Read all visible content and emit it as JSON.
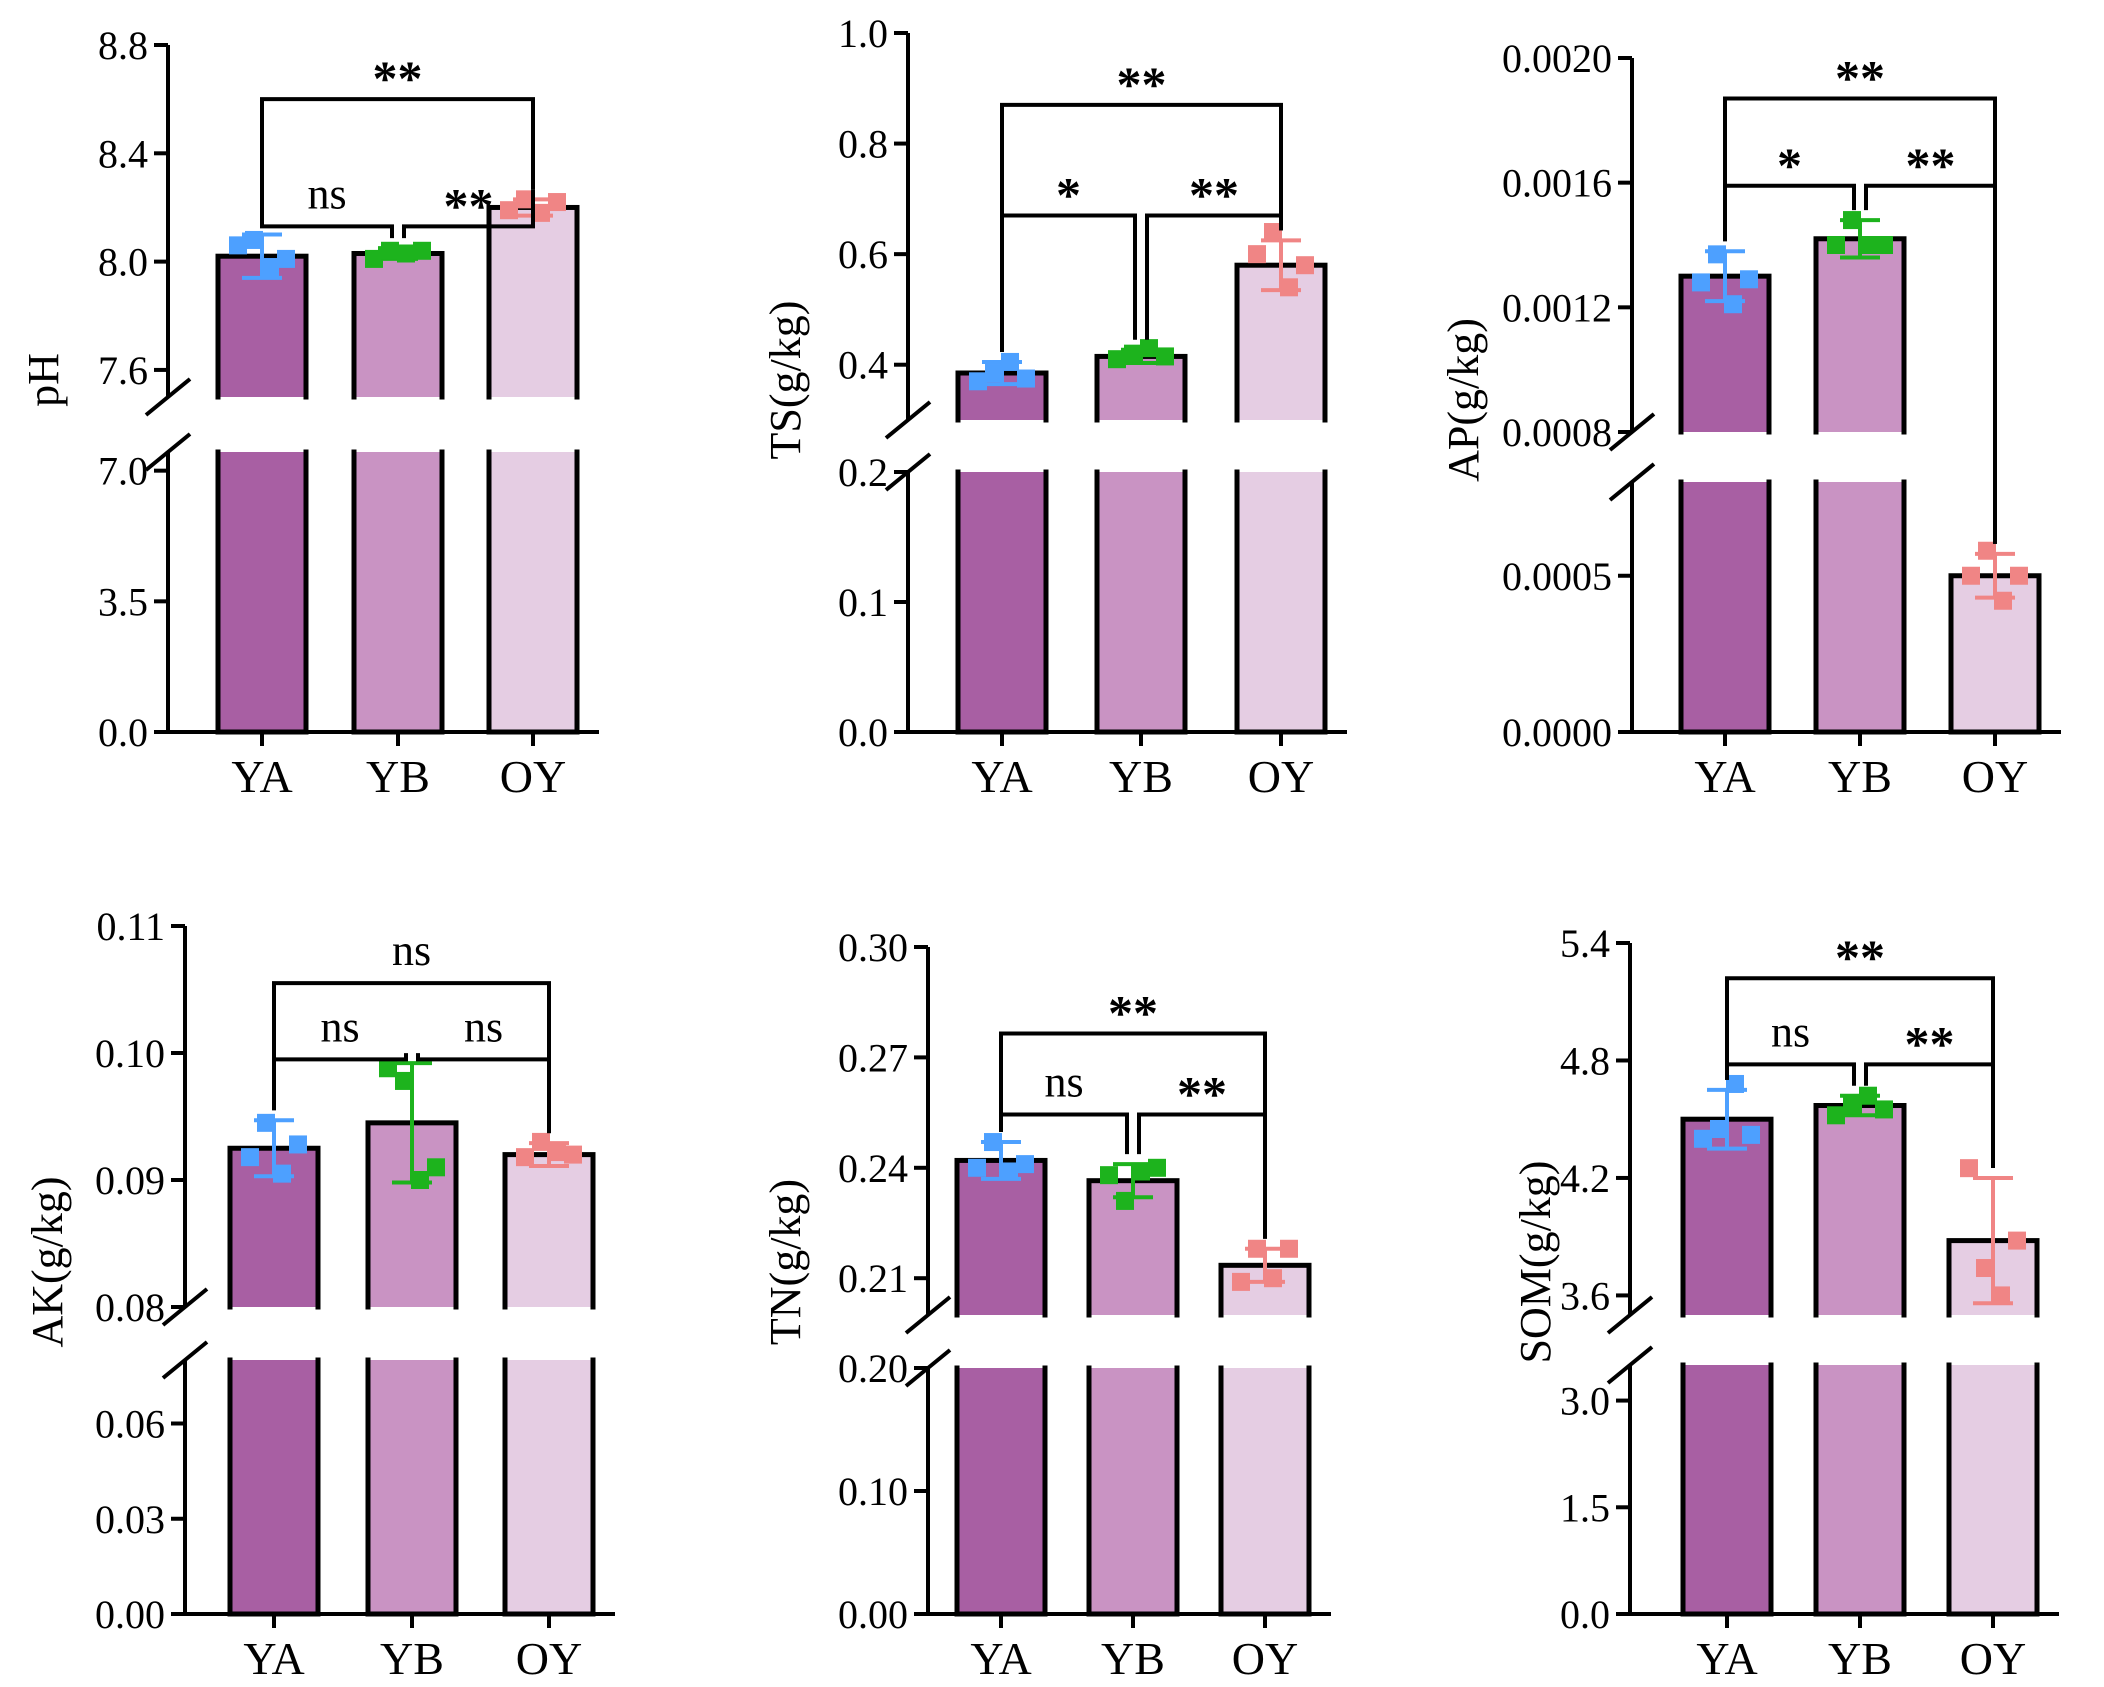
{
  "chart_data": [
    {
      "type": "bar",
      "title": "",
      "ylabel": "pH",
      "categories": [
        "YA",
        "YB",
        "OY"
      ],
      "bar_colors": [
        "#a85fa3",
        "#c993c3",
        "#e5cde3"
      ],
      "point_colors": [
        "#4da0ff",
        "#1db31d",
        "#f08585"
      ],
      "upper_range": [
        7.5,
        8.8
      ],
      "upper_ticks": [
        "7.6",
        "8.0",
        "8.4",
        "8.8"
      ],
      "lower_range": [
        0,
        7.5
      ],
      "lower_ticks": [
        "0.0",
        "3.5",
        "7.0"
      ],
      "values": [
        8.02,
        8.03,
        8.2
      ],
      "errors": [
        0.08,
        0.02,
        0.03
      ],
      "points": [
        [
          8.06,
          8.08,
          7.98,
          8.01
        ],
        [
          8.01,
          8.04,
          8.03,
          8.04
        ],
        [
          8.19,
          8.23,
          8.18,
          8.22
        ]
      ],
      "brackets": [
        {
          "a": 0,
          "b": 1,
          "y": 8.13,
          "label": "ns"
        },
        {
          "a": 1,
          "b": 2,
          "y": 8.13,
          "label": "**"
        },
        {
          "a": 0,
          "b": 2,
          "y": 8.6,
          "label": "**"
        }
      ]
    },
    {
      "type": "bar",
      "title": "",
      "ylabel": "TS(g/kg)",
      "categories": [
        "YA",
        "YB",
        "OY"
      ],
      "bar_colors": [
        "#a85fa3",
        "#c993c3",
        "#e5cde3"
      ],
      "point_colors": [
        "#4da0ff",
        "#1db31d",
        "#f08585"
      ],
      "upper_range": [
        0.3,
        1.0
      ],
      "upper_ticks": [
        "0.4",
        "0.6",
        "0.8",
        "1.0"
      ],
      "lower_range": [
        0,
        0.2
      ],
      "lower_ticks": [
        "0.0",
        "0.1",
        "0.2"
      ],
      "values": [
        0.385,
        0.415,
        0.58
      ],
      "errors": [
        0.02,
        0.012,
        0.045
      ],
      "points": [
        [
          0.37,
          0.385,
          0.405,
          0.375
        ],
        [
          0.41,
          0.42,
          0.43,
          0.415
        ],
        [
          0.6,
          0.64,
          0.54,
          0.58
        ]
      ],
      "brackets": [
        {
          "a": 0,
          "b": 1,
          "y": 0.67,
          "label": "*"
        },
        {
          "a": 1,
          "b": 2,
          "y": 0.67,
          "label": "**"
        },
        {
          "a": 0,
          "b": 2,
          "y": 0.87,
          "label": "**"
        }
      ]
    },
    {
      "type": "bar",
      "title": "",
      "ylabel": "AP(g/kg)",
      "categories": [
        "YA",
        "YB",
        "OY"
      ],
      "bar_colors": [
        "#a85fa3",
        "#c993c3",
        "#e5cde3"
      ],
      "point_colors": [
        "#4da0ff",
        "#1db31d",
        "#f08585"
      ],
      "upper_range": [
        0.0008,
        0.002
      ],
      "upper_ticks": [
        "0.0008",
        "0.0012",
        "0.0016",
        "0.0020"
      ],
      "lower_range": [
        0,
        0.0008
      ],
      "lower_ticks": [
        "0.0000",
        "0.0005"
      ],
      "values": [
        0.0013,
        0.00142,
        0.0005
      ],
      "errors": [
        8e-05,
        6e-05,
        7e-05
      ],
      "points": [
        [
          0.00128,
          0.00137,
          0.00121,
          0.00129
        ],
        [
          0.0014,
          0.00148,
          0.0014,
          0.0014
        ],
        [
          0.0005,
          0.00058,
          0.00042,
          0.0005
        ]
      ],
      "brackets": [
        {
          "a": 0,
          "b": 1,
          "y": 0.00159,
          "label": "*"
        },
        {
          "a": 1,
          "b": 2,
          "y": 0.00159,
          "label": "**"
        },
        {
          "a": 0,
          "b": 2,
          "y": 0.00187,
          "label": "**"
        }
      ]
    },
    {
      "type": "bar",
      "title": "",
      "ylabel": "AK(g/kg)",
      "categories": [
        "YA",
        "YB",
        "OY"
      ],
      "bar_colors": [
        "#a85fa3",
        "#c993c3",
        "#e5cde3"
      ],
      "point_colors": [
        "#4da0ff",
        "#1db31d",
        "#f08585"
      ],
      "upper_range": [
        0.08,
        0.11
      ],
      "upper_ticks": [
        "0.08",
        "0.09",
        "0.10",
        "0.11"
      ],
      "lower_range": [
        0,
        0.08
      ],
      "lower_ticks": [
        "0.00",
        "0.03",
        "0.06"
      ],
      "values": [
        0.0925,
        0.0945,
        0.092
      ],
      "errors": [
        0.0022,
        0.0047,
        0.0009
      ],
      "points": [
        [
          0.0918,
          0.0945,
          0.0905,
          0.0928
        ],
        [
          0.0988,
          0.0978,
          0.09,
          0.091
        ],
        [
          0.0918,
          0.093,
          0.0922,
          0.092
        ]
      ],
      "brackets": [
        {
          "a": 0,
          "b": 1,
          "y": 0.0995,
          "label": "ns"
        },
        {
          "a": 1,
          "b": 2,
          "y": 0.0995,
          "label": "ns"
        },
        {
          "a": 0,
          "b": 2,
          "y": 0.1055,
          "label": "ns"
        }
      ]
    },
    {
      "type": "bar",
      "title": "",
      "ylabel": "TN(g/kg)",
      "categories": [
        "YA",
        "YB",
        "OY"
      ],
      "bar_colors": [
        "#a85fa3",
        "#c993c3",
        "#e5cde3"
      ],
      "point_colors": [
        "#4da0ff",
        "#1db31d",
        "#f08585"
      ],
      "upper_range": [
        0.2,
        0.3
      ],
      "upper_ticks": [
        "0.21",
        "0.24",
        "0.27",
        "0.30"
      ],
      "lower_range": [
        0,
        0.2
      ],
      "lower_ticks": [
        "0.00",
        "0.10",
        "0.20"
      ],
      "values": [
        0.242,
        0.2365,
        0.2135
      ],
      "errors": [
        0.005,
        0.0045,
        0.0045
      ],
      "points": [
        [
          0.24,
          0.247,
          0.239,
          0.241
        ],
        [
          0.238,
          0.231,
          0.239,
          0.24
        ],
        [
          0.209,
          0.218,
          0.21,
          0.218
        ]
      ],
      "brackets": [
        {
          "a": 0,
          "b": 1,
          "y": 0.2545,
          "label": "ns"
        },
        {
          "a": 1,
          "b": 2,
          "y": 0.2545,
          "label": "**"
        },
        {
          "a": 0,
          "b": 2,
          "y": 0.2765,
          "label": "**"
        }
      ]
    },
    {
      "type": "bar",
      "title": "",
      "ylabel": "SOM(g/kg)",
      "categories": [
        "YA",
        "YB",
        "OY"
      ],
      "bar_colors": [
        "#a85fa3",
        "#c993c3",
        "#e5cde3"
      ],
      "point_colors": [
        "#4da0ff",
        "#1db31d",
        "#f08585"
      ],
      "upper_range": [
        3.5,
        5.4
      ],
      "upper_ticks": [
        "3.6",
        "4.2",
        "4.8",
        "5.4"
      ],
      "lower_range": [
        0,
        3.5
      ],
      "lower_ticks": [
        "0.0",
        "1.5",
        "3.0"
      ],
      "values": [
        4.5,
        4.57,
        3.88
      ],
      "errors": [
        0.15,
        0.05,
        0.32
      ],
      "points": [
        [
          4.4,
          4.45,
          4.68,
          4.42
        ],
        [
          4.52,
          4.57,
          4.62,
          4.55
        ],
        [
          4.25,
          3.74,
          3.6,
          3.88
        ]
      ],
      "brackets": [
        {
          "a": 0,
          "b": 1,
          "y": 4.78,
          "label": "ns"
        },
        {
          "a": 1,
          "b": 2,
          "y": 4.78,
          "label": "**"
        },
        {
          "a": 0,
          "b": 2,
          "y": 5.22,
          "label": "**"
        }
      ]
    }
  ]
}
